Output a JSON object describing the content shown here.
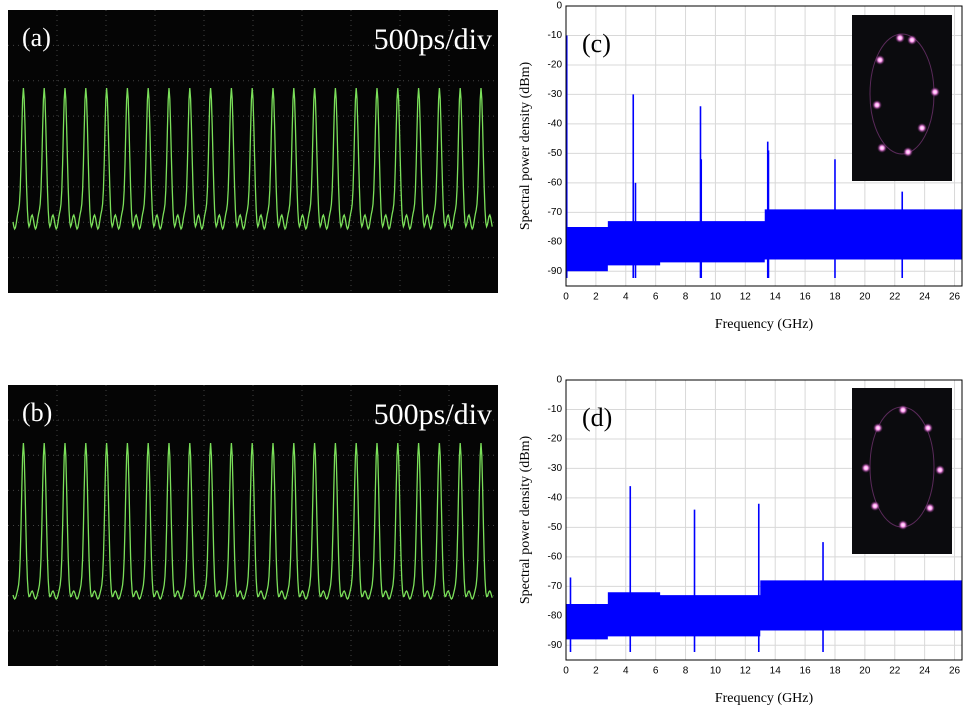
{
  "chart_data": [
    {
      "type": "scope",
      "label": "(a)",
      "timebase": "500ps/div",
      "trace_color": "#7be05a"
    },
    {
      "type": "scope",
      "label": "(b)",
      "timebase": "500ps/div",
      "trace_color": "#7be05a"
    },
    {
      "type": "spectrum",
      "label": "(c)",
      "xlabel": "Frequency (GHz)",
      "ylabel": "Spectral power density (dBm)",
      "color": "#0000ff",
      "grid": true,
      "xlim": [
        0,
        26.5
      ],
      "xticks": [
        0,
        2,
        4,
        6,
        8,
        10,
        12,
        14,
        16,
        18,
        20,
        22,
        24,
        26
      ],
      "ylim": [
        -95,
        0
      ],
      "yticks": [
        0,
        -10,
        -20,
        -30,
        -40,
        -50,
        -60,
        -70,
        -80,
        -90
      ],
      "peaks": {
        "x": [
          0.05,
          4.5,
          4.65,
          9.0,
          9.05,
          13.5,
          13.55,
          18.0,
          22.5
        ],
        "values": [
          -10,
          -30,
          -60,
          -34,
          -52,
          -46,
          -49,
          -52,
          -63
        ]
      },
      "band": {
        "x": [
          0,
          2.8,
          2.8,
          6.3,
          6.3,
          13.3,
          13.3,
          26.5
        ],
        "top": [
          -75,
          -75,
          -73,
          -73,
          -73,
          -73,
          -69,
          -69
        ],
        "bottom": [
          -90,
          -90,
          -88,
          -88,
          -87,
          -87,
          -86,
          -86
        ]
      }
    },
    {
      "type": "spectrum",
      "label": "(d)",
      "xlabel": "Frequency (GHz)",
      "ylabel": "Spectral power density (dBm)",
      "color": "#0000ff",
      "grid": true,
      "xlim": [
        0,
        26.5
      ],
      "xticks": [
        0,
        2,
        4,
        6,
        8,
        10,
        12,
        14,
        16,
        18,
        20,
        22,
        24,
        26
      ],
      "ylim": [
        -95,
        0
      ],
      "yticks": [
        0,
        -10,
        -20,
        -30,
        -40,
        -50,
        -60,
        -70,
        -80,
        -90
      ],
      "peaks": {
        "x": [
          0.3,
          4.3,
          8.6,
          12.9,
          17.2
        ],
        "values": [
          -67,
          -36,
          -44,
          -42,
          -55
        ]
      },
      "band": {
        "x": [
          0,
          2.8,
          2.8,
          6.3,
          6.3,
          13.0,
          13.0,
          26.5
        ],
        "top": [
          -76,
          -76,
          -72,
          -72,
          -73,
          -73,
          -68,
          -68
        ],
        "bottom": [
          -88,
          -88,
          -87,
          -87,
          -87,
          -87,
          -85,
          -85
        ]
      }
    }
  ]
}
